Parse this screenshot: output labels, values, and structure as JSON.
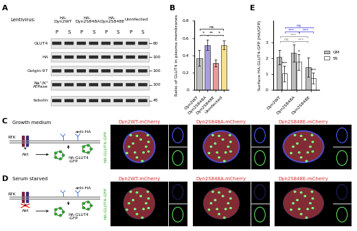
{
  "panel_labels": [
    "A",
    "B",
    "C",
    "D",
    "E"
  ],
  "blot": {
    "header": "Lentivirus:",
    "groups": [
      "HA-\nDyn2WT",
      "HA-\nDyn2S848A",
      "HA-\nDyn2S848E",
      "Uninfected"
    ],
    "lanes": [
      "P",
      "S"
    ],
    "rows": [
      {
        "name": "GLUT4",
        "mw": 60
      },
      {
        "name": "HA",
        "mw": 100
      },
      {
        "name": "Golgin-97",
        "mw": 100
      },
      {
        "name": "Na⁺/K⁺\nATPase",
        "mw": 100
      },
      {
        "name": "tubulin",
        "mw": 45
      }
    ]
  },
  "diagram": {
    "receptor": "RTK",
    "kinase": "Akt",
    "antibody": "anti-HA",
    "cargo": "HA-GLUT4\n-GFP"
  },
  "conditions": [
    {
      "label": "Growth medium",
      "images": [
        "Dyn2WT-mCherry",
        "Dyn2S848A-mCherry",
        "Dyn2S848E-mCherry"
      ]
    },
    {
      "label": "Serum starved",
      "images": [
        "Dyn2WT-mCherry",
        "Dyn2S848A-mCherry",
        "Dyn2S848E-mCherry"
      ]
    }
  ],
  "channel_label": "HA-GLUT4-GFP",
  "chart_data": [
    {
      "type": "bar",
      "categories": [
        "Dyn2WT",
        "Dyn2S848A",
        "Dyn2S848E",
        "Uninfected"
      ],
      "values": [
        0.37,
        0.52,
        0.31,
        0.52
      ],
      "errors": [
        0.09,
        0.06,
        0.04,
        0.05
      ],
      "colors": [
        "#bdbdbd",
        "#a99fd8",
        "#e89a9a",
        "#f7e08c"
      ],
      "ylabel": "Ratio of GLUT4 in plasma membranes",
      "ylim": [
        0,
        0.8
      ],
      "yticks": [
        0,
        0.2,
        0.4,
        0.6,
        0.8
      ],
      "significance": [
        {
          "from": 0,
          "to": 1,
          "label": "*"
        },
        {
          "from": 1,
          "to": 2,
          "label": "**"
        },
        {
          "from": 2,
          "to": 3,
          "label": "*"
        },
        {
          "from": 0,
          "to": 3,
          "label": "ns"
        }
      ]
    },
    {
      "type": "bar",
      "categories": [
        "Dyn2WT",
        "Dyn2S848A",
        "Dyn2S848E"
      ],
      "series": [
        {
          "name": "GM",
          "color": "#bdbdbd",
          "values": [
            2.1,
            2.35,
            1.45
          ],
          "errors": [
            0.45,
            0.55,
            0.6
          ]
        },
        {
          "name": "SS",
          "color": "#ffffff",
          "values": [
            1.05,
            1.8,
            0.75
          ],
          "errors": [
            0.5,
            0.5,
            0.35
          ],
          "marks": [
            "***",
            "*",
            "***"
          ]
        }
      ],
      "ylabel": "Surface HA-GLUT4-GFP (HA/GFP)",
      "ylim": [
        0,
        4.4
      ],
      "yticks": [
        0,
        1,
        2,
        3
      ],
      "legend": "right",
      "significance": [
        {
          "series": "GM",
          "from": 0,
          "to": 1,
          "label": "ns",
          "color": "#7f7f7f"
        },
        {
          "series": "GM",
          "from": 1,
          "to": 2,
          "label": "***",
          "color": "#7f7f7f"
        },
        {
          "series": "GM",
          "from": 0,
          "to": 2,
          "label": "***",
          "color": "#7f7f7f"
        },
        {
          "series": "SS",
          "from": 0,
          "to": 1,
          "label": "***",
          "color": "#2f2fd6"
        },
        {
          "series": "SS",
          "from": 1,
          "to": 2,
          "label": "***",
          "color": "#2f2fd6"
        },
        {
          "series": "SS",
          "from": 0,
          "to": 2,
          "label": "ns",
          "color": "#2f2fd6"
        }
      ]
    }
  ]
}
